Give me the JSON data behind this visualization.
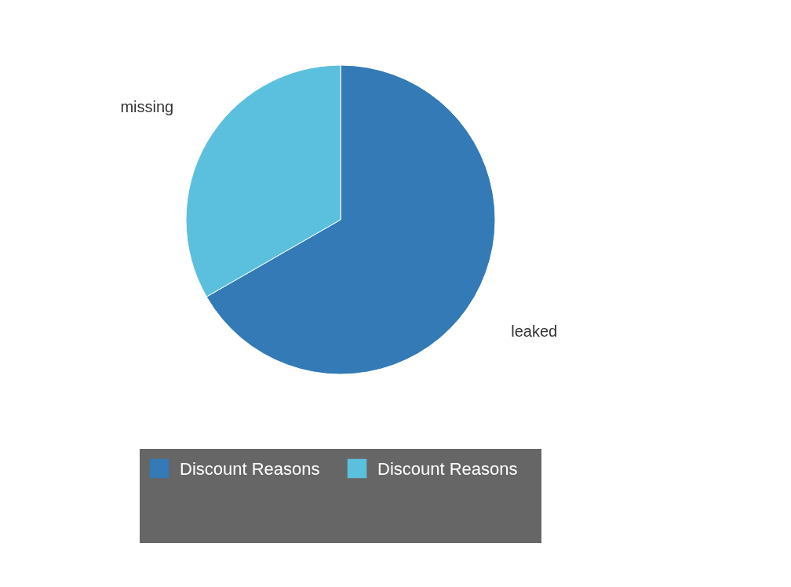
{
  "chart_data": {
    "type": "pie",
    "categories": [
      "leaked",
      "missing"
    ],
    "colors": [
      "#337ab7",
      "#5bc0de"
    ],
    "series": [
      {
        "name": "Discount Reasons",
        "values": [
          66.7,
          33.3
        ]
      }
    ],
    "legend": "bottom"
  }
}
